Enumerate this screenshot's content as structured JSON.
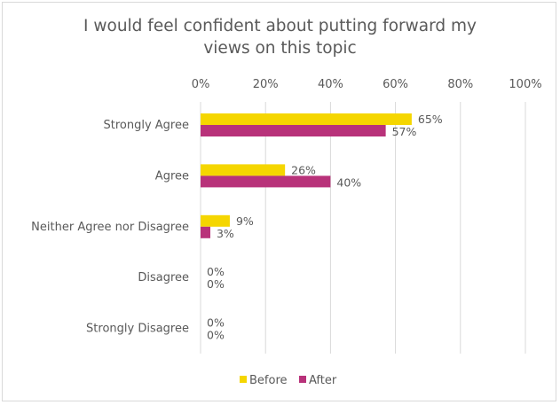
{
  "chart_data": {
    "type": "bar",
    "orientation": "horizontal",
    "title_lines": [
      "I would feel confident about putting forward my",
      "views on this topic"
    ],
    "categories": [
      "Strongly Agree",
      "Agree",
      "Neither Agree nor Disagree",
      "Disagree",
      "Strongly Disagree"
    ],
    "series": [
      {
        "name": "Before",
        "color": "#f5d600",
        "values": [
          65,
          26,
          9,
          0,
          0
        ],
        "labels": [
          "65%",
          "26%",
          "9%",
          "0%",
          "0%"
        ]
      },
      {
        "name": "After",
        "color": "#b8327a",
        "values": [
          57,
          40,
          3,
          0,
          0
        ],
        "labels": [
          "57%",
          "40%",
          "3%",
          "0%",
          "0%"
        ]
      }
    ],
    "xticks": [
      "0%",
      "20%",
      "40%",
      "60%",
      "80%",
      "100%"
    ],
    "xlim": [
      0,
      100
    ],
    "x_axis_position": "top",
    "grid": true,
    "legend": {
      "position": "bottom",
      "entries": [
        "Before",
        "After"
      ]
    }
  },
  "colors": {
    "grid": "#d9d9d9",
    "text": "#595959",
    "border": "#d9d9d9"
  }
}
